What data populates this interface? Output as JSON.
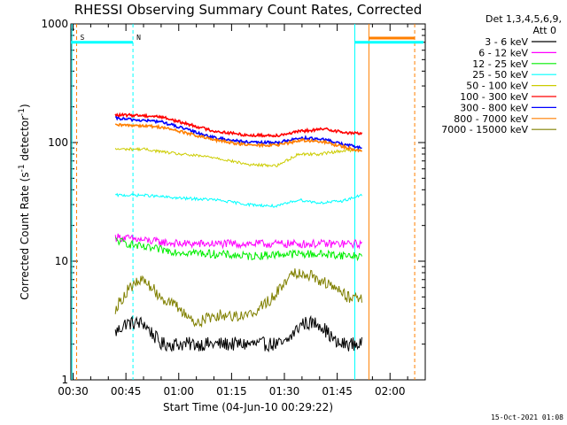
{
  "chart_data": {
    "type": "line",
    "title": "RHESSI Observing Summary Count Rates, Corrected",
    "xlabel": "Start Time (04-Jun-10 00:29:22)",
    "ylabel": "Corrected Count Rate (s",
    "ylabel_sup1": "-1",
    "ylabel_mid": " detector",
    "ylabel_sup2": "-1",
    "ylabel_end": ")",
    "y_scale": "log",
    "ylim": [
      1,
      1000
    ],
    "xlim": [
      "00:29:22",
      "02:10:00"
    ],
    "x_ticks": [
      "00:30",
      "00:45",
      "01:00",
      "01:15",
      "01:30",
      "01:45",
      "02:00"
    ],
    "y_ticks": [
      {
        "value": 1,
        "label": "1"
      },
      {
        "value": 10,
        "label": "10"
      },
      {
        "value": 100,
        "label": "100"
      },
      {
        "value": 1000,
        "label": "1000"
      }
    ],
    "legend_header": [
      "Det 1,3,4,5,6,9,",
      "Att 0"
    ],
    "legend_position": "right",
    "series": [
      {
        "name": "3 - 6 keV",
        "color": "#000000",
        "x": [
          "00:42",
          "00:45",
          "00:50",
          "00:55",
          "01:00",
          "01:10",
          "01:20",
          "01:30",
          "01:35",
          "01:40",
          "01:45",
          "01:52"
        ],
        "y": [
          2.5,
          3.0,
          3.0,
          2.0,
          2.0,
          2.0,
          2.0,
          2.0,
          3.0,
          3.0,
          2.0,
          2.0
        ]
      },
      {
        "name": "6 - 12 keV",
        "color": "#ff00ff",
        "x": [
          "00:42",
          "00:50",
          "01:00",
          "01:10",
          "01:20",
          "01:30",
          "01:40",
          "01:52"
        ],
        "y": [
          16,
          15,
          14,
          14,
          14,
          14,
          14,
          14
        ]
      },
      {
        "name": "12 - 25 keV",
        "color": "#00ee00",
        "x": [
          "00:42",
          "00:50",
          "01:00",
          "01:10",
          "01:20",
          "01:30",
          "01:40",
          "01:52"
        ],
        "y": [
          15,
          13,
          12,
          11.5,
          11,
          11.5,
          11.5,
          11
        ]
      },
      {
        "name": "25 - 50 keV",
        "color": "#00ffff",
        "x": [
          "00:42",
          "00:50",
          "01:00",
          "01:10",
          "01:20",
          "01:28",
          "01:34",
          "01:40",
          "01:46",
          "01:52"
        ],
        "y": [
          36,
          36,
          34,
          33,
          30,
          29,
          33,
          31,
          32,
          36
        ]
      },
      {
        "name": "50 - 100 keV",
        "color": "#cccc00",
        "x": [
          "00:42",
          "00:50",
          "01:00",
          "01:10",
          "01:20",
          "01:28",
          "01:34",
          "01:40",
          "01:46",
          "01:52"
        ],
        "y": [
          88,
          88,
          80,
          75,
          65,
          64,
          80,
          80,
          85,
          87
        ]
      },
      {
        "name": "100 - 300 keV",
        "color": "#ff0000",
        "x": [
          "00:42",
          "00:48",
          "00:55",
          "01:00",
          "01:10",
          "01:20",
          "01:28",
          "01:35",
          "01:42",
          "01:48",
          "01:52"
        ],
        "y": [
          170,
          170,
          165,
          150,
          125,
          115,
          115,
          125,
          130,
          120,
          120
        ]
      },
      {
        "name": "300 - 800 keV",
        "color": "#0000ff",
        "x": [
          "00:42",
          "00:48",
          "00:55",
          "01:00",
          "01:10",
          "01:20",
          "01:28",
          "01:35",
          "01:42",
          "01:48",
          "01:52"
        ],
        "y": [
          160,
          155,
          150,
          135,
          110,
          100,
          100,
          110,
          105,
          95,
          90
        ]
      },
      {
        "name": "800 - 7000 keV",
        "color": "#ff7f00",
        "x": [
          "00:42",
          "00:48",
          "00:55",
          "01:00",
          "01:10",
          "01:20",
          "01:28",
          "01:35",
          "01:42",
          "01:48",
          "01:52"
        ],
        "y": [
          140,
          140,
          135,
          125,
          105,
          95,
          95,
          105,
          100,
          90,
          85
        ]
      },
      {
        "name": "7000 - 15000 keV",
        "color": "#808000",
        "x": [
          "00:42",
          "00:46",
          "00:50",
          "00:55",
          "01:00",
          "01:05",
          "01:10",
          "01:20",
          "01:27",
          "01:32",
          "01:36",
          "01:40",
          "01:44",
          "01:48",
          "01:52"
        ],
        "y": [
          4,
          6,
          7,
          5,
          4,
          3,
          3.5,
          3.5,
          5,
          8,
          8,
          7,
          6,
          5,
          5
        ]
      }
    ],
    "annotations": [
      {
        "text": "S",
        "x": "00:31",
        "color": "#ff7f00"
      },
      {
        "text": "N",
        "x": "00:47",
        "color": "#00ffff"
      }
    ],
    "footer_date": "15-Oct-2021 01:08"
  }
}
